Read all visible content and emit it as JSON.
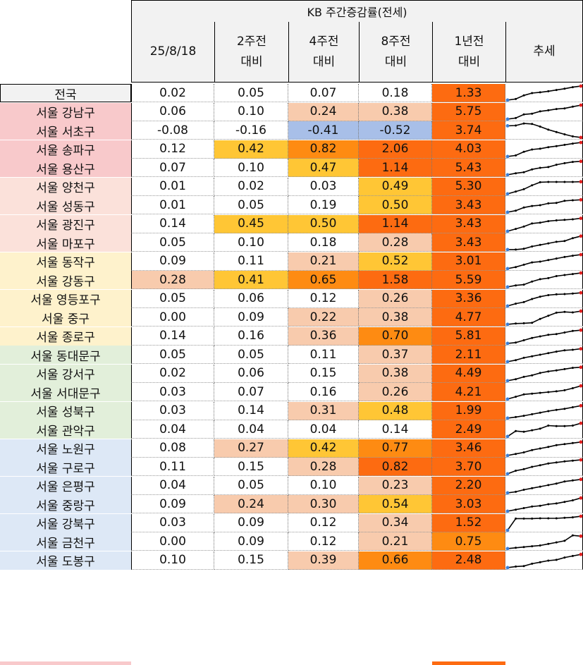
{
  "table": {
    "group_title": "KB 주간증감률(전세)",
    "columns": [
      "25/8/18",
      "2주전\n대비",
      "4주전\n대비",
      "8주전\n대비",
      "1년전\n대비",
      "추세"
    ],
    "colors": {
      "header_bg": "#f2f2f2",
      "trend_line": "#000000",
      "trend_start_dot": "#3b7fd6",
      "trend_end_dot": "#e01f1f",
      "heat_levels": {
        "0": "#ffffff",
        "1": "#f8cbad",
        "2": "#ffc635",
        "3": "#fe8b12",
        "4": "#fd6b11",
        "n": "#a8bfe8"
      },
      "name_groups": {
        "nat": "#f2f2f2",
        "g1": "#f8c9cb",
        "g2": "#fbe1da",
        "g3": "#fef2cc",
        "g4": "#e2efda",
        "g5": "#dde8f6"
      }
    },
    "rows": [
      {
        "name": "전국",
        "group": "nat",
        "values": [
          "0.02",
          "0.05",
          "0.07",
          "0.18",
          "1.33"
        ],
        "levels": [
          0,
          0,
          0,
          0,
          4
        ],
        "trend": [
          0.05,
          0.12,
          0.35,
          0.5,
          0.55,
          0.62,
          0.7,
          0.78,
          0.88,
          0.95
        ]
      },
      {
        "name": "서울 강남구",
        "group": "g1",
        "values": [
          "0.06",
          "0.10",
          "0.24",
          "0.38",
          "5.75"
        ],
        "levels": [
          0,
          0,
          1,
          1,
          4
        ],
        "trend": [
          0.05,
          0.12,
          0.35,
          0.4,
          0.55,
          0.62,
          0.7,
          0.74,
          0.85,
          0.95
        ]
      },
      {
        "name": "서울 서초구",
        "group": "g1",
        "values": [
          "-0.08",
          "-0.16",
          "-0.41",
          "-0.52",
          "3.74"
        ],
        "levels": [
          0,
          0,
          "n",
          "n",
          4
        ],
        "trend": [
          0.8,
          0.82,
          0.95,
          0.92,
          0.75,
          0.55,
          0.4,
          0.25,
          0.12,
          0.05
        ]
      },
      {
        "name": "서울 송파구",
        "group": "g1",
        "values": [
          "0.12",
          "0.42",
          "0.82",
          "2.06",
          "4.03"
        ],
        "levels": [
          0,
          2,
          3,
          4,
          4
        ],
        "trend": [
          0.05,
          0.12,
          0.35,
          0.5,
          0.55,
          0.65,
          0.72,
          0.8,
          0.88,
          0.95
        ]
      },
      {
        "name": "서울 용산구",
        "group": "g1",
        "values": [
          "0.07",
          "0.10",
          "0.47",
          "1.14",
          "5.43"
        ],
        "levels": [
          0,
          0,
          2,
          4,
          4
        ],
        "trend": [
          0.05,
          0.15,
          0.22,
          0.4,
          0.5,
          0.55,
          0.7,
          0.8,
          0.88,
          0.92
        ]
      },
      {
        "name": "서울 양천구",
        "group": "g2",
        "values": [
          "0.01",
          "0.02",
          "0.03",
          "0.49",
          "5.30"
        ],
        "levels": [
          0,
          0,
          0,
          2,
          4
        ],
        "trend": [
          0.05,
          0.2,
          0.35,
          0.6,
          0.8,
          0.82,
          0.82,
          0.82,
          0.82,
          0.83
        ]
      },
      {
        "name": "서울 성동구",
        "group": "g2",
        "values": [
          "0.01",
          "0.05",
          "0.19",
          "0.50",
          "3.43"
        ],
        "levels": [
          0,
          0,
          0,
          2,
          4
        ],
        "trend": [
          0.05,
          0.15,
          0.35,
          0.45,
          0.5,
          0.62,
          0.65,
          0.78,
          0.82,
          0.85
        ]
      },
      {
        "name": "서울 광진구",
        "group": "g2",
        "values": [
          "0.14",
          "0.45",
          "0.50",
          "1.14",
          "3.43"
        ],
        "levels": [
          0,
          2,
          2,
          4,
          4
        ],
        "trend": [
          0.05,
          0.2,
          0.35,
          0.55,
          0.6,
          0.7,
          0.75,
          0.78,
          0.82,
          0.88
        ]
      },
      {
        "name": "서울 마포구",
        "group": "g2",
        "values": [
          "0.05",
          "0.10",
          "0.18",
          "0.28",
          "3.43"
        ],
        "levels": [
          0,
          0,
          0,
          1,
          4
        ],
        "trend": [
          0.05,
          0.05,
          0.1,
          0.25,
          0.35,
          0.45,
          0.55,
          0.6,
          0.78,
          0.92
        ]
      },
      {
        "name": "서울 동작구",
        "group": "g3",
        "values": [
          "0.09",
          "0.11",
          "0.21",
          "0.52",
          "3.01"
        ],
        "levels": [
          0,
          0,
          1,
          2,
          4
        ],
        "trend": [
          0.05,
          0.15,
          0.3,
          0.45,
          0.5,
          0.6,
          0.7,
          0.8,
          0.88,
          0.95
        ]
      },
      {
        "name": "서울 강동구",
        "group": "g3",
        "values": [
          "0.28",
          "0.41",
          "0.65",
          "1.58",
          "5.59"
        ],
        "levels": [
          1,
          2,
          3,
          4,
          4
        ],
        "trend": [
          0.05,
          0.15,
          0.2,
          0.4,
          0.55,
          0.62,
          0.75,
          0.82,
          0.88,
          0.95
        ]
      },
      {
        "name": "서울 영등포구",
        "group": "g3",
        "values": [
          "0.05",
          "0.06",
          "0.12",
          "0.26",
          "3.36"
        ],
        "levels": [
          0,
          0,
          0,
          1,
          4
        ],
        "trend": [
          0.05,
          0.2,
          0.3,
          0.5,
          0.65,
          0.75,
          0.8,
          0.82,
          0.85,
          0.9
        ]
      },
      {
        "name": "서울 중구",
        "group": "g3",
        "values": [
          "0.00",
          "0.09",
          "0.22",
          "0.38",
          "4.77"
        ],
        "levels": [
          0,
          0,
          1,
          1,
          4
        ],
        "trend": [
          0.05,
          0.1,
          0.12,
          0.15,
          0.4,
          0.6,
          0.8,
          0.85,
          0.82,
          0.9
        ]
      },
      {
        "name": "서울 종로구",
        "group": "g3",
        "values": [
          "0.14",
          "0.16",
          "0.36",
          "0.70",
          "5.81"
        ],
        "levels": [
          0,
          0,
          1,
          3,
          4
        ],
        "trend": [
          0.05,
          0.1,
          0.25,
          0.4,
          0.5,
          0.6,
          0.65,
          0.75,
          0.85,
          0.9
        ]
      },
      {
        "name": "서울 동대문구",
        "group": "g4",
        "values": [
          "0.05",
          "0.05",
          "0.11",
          "0.37",
          "2.11"
        ],
        "levels": [
          0,
          0,
          0,
          1,
          4
        ],
        "trend": [
          0.05,
          0.15,
          0.3,
          0.4,
          0.5,
          0.6,
          0.7,
          0.78,
          0.82,
          0.88
        ]
      },
      {
        "name": "서울 강서구",
        "group": "g4",
        "values": [
          "0.02",
          "0.06",
          "0.15",
          "0.38",
          "4.49"
        ],
        "levels": [
          0,
          0,
          0,
          1,
          4
        ],
        "trend": [
          0.05,
          0.15,
          0.3,
          0.4,
          0.55,
          0.65,
          0.72,
          0.8,
          0.88,
          0.92
        ]
      },
      {
        "name": "서울 서대문구",
        "group": "g4",
        "values": [
          "0.03",
          "0.07",
          "0.16",
          "0.26",
          "4.21"
        ],
        "levels": [
          0,
          0,
          0,
          1,
          4
        ],
        "trend": [
          0.05,
          0.2,
          0.35,
          0.4,
          0.45,
          0.5,
          0.55,
          0.62,
          0.75,
          0.9
        ]
      },
      {
        "name": "서울 성북구",
        "group": "g4",
        "values": [
          "0.03",
          "0.14",
          "0.31",
          "0.48",
          "1.99"
        ],
        "levels": [
          0,
          0,
          1,
          2,
          4
        ],
        "trend": [
          0.05,
          0.12,
          0.2,
          0.3,
          0.4,
          0.5,
          0.58,
          0.65,
          0.75,
          0.85
        ]
      },
      {
        "name": "서울 관악구",
        "group": "g4",
        "values": [
          "0.04",
          "0.04",
          "0.04",
          "0.14",
          "2.49"
        ],
        "levels": [
          0,
          0,
          0,
          0,
          4
        ],
        "trend": [
          0.05,
          0.4,
          0.35,
          0.45,
          0.55,
          0.75,
          0.72,
          0.72,
          0.75,
          0.9
        ]
      },
      {
        "name": "서울 노원구",
        "group": "g5",
        "values": [
          "0.08",
          "0.27",
          "0.42",
          "0.77",
          "3.46"
        ],
        "levels": [
          0,
          1,
          2,
          3,
          4
        ],
        "trend": [
          0.05,
          0.15,
          0.25,
          0.4,
          0.5,
          0.6,
          0.72,
          0.78,
          0.85,
          0.92
        ]
      },
      {
        "name": "서울 구로구",
        "group": "g5",
        "values": [
          "0.11",
          "0.15",
          "0.28",
          "0.82",
          "3.70"
        ],
        "levels": [
          0,
          0,
          1,
          4,
          4
        ],
        "trend": [
          0.05,
          0.25,
          0.35,
          0.5,
          0.6,
          0.72,
          0.78,
          0.85,
          0.9,
          0.95
        ]
      },
      {
        "name": "서울 은평구",
        "group": "g5",
        "values": [
          "0.04",
          "0.05",
          "0.10",
          "0.23",
          "2.20"
        ],
        "levels": [
          0,
          0,
          0,
          1,
          4
        ],
        "trend": [
          0.05,
          0.12,
          0.25,
          0.35,
          0.45,
          0.55,
          0.65,
          0.78,
          0.85,
          0.92
        ]
      },
      {
        "name": "서울 중랑구",
        "group": "g5",
        "values": [
          "0.09",
          "0.24",
          "0.30",
          "0.54",
          "3.03"
        ],
        "levels": [
          0,
          1,
          1,
          2,
          4
        ],
        "trend": [
          0.05,
          0.15,
          0.25,
          0.35,
          0.4,
          0.5,
          0.55,
          0.65,
          0.75,
          0.9
        ]
      },
      {
        "name": "서울 강북구",
        "group": "g5",
        "values": [
          "0.03",
          "0.09",
          "0.12",
          "0.34",
          "1.52"
        ],
        "levels": [
          0,
          0,
          0,
          1,
          4
        ],
        "trend": [
          0.05,
          0.8,
          0.8,
          0.8,
          0.82,
          0.82,
          0.82,
          0.85,
          0.88,
          0.95
        ]
      },
      {
        "name": "서울 금천구",
        "group": "g5",
        "values": [
          "0.00",
          "0.09",
          "0.12",
          "0.21",
          "0.75"
        ],
        "levels": [
          0,
          0,
          0,
          1,
          3
        ],
        "trend": [
          0.05,
          0.1,
          0.15,
          0.2,
          0.25,
          0.35,
          0.45,
          0.55,
          0.9,
          0.85
        ]
      },
      {
        "name": "서울 도봉구",
        "group": "g5",
        "values": [
          "0.10",
          "0.15",
          "0.39",
          "0.66",
          "2.48"
        ],
        "levels": [
          0,
          0,
          1,
          3,
          4
        ],
        "trend": [
          0.05,
          0.12,
          0.15,
          0.3,
          0.4,
          0.5,
          0.55,
          0.7,
          0.8,
          0.9
        ]
      }
    ]
  }
}
